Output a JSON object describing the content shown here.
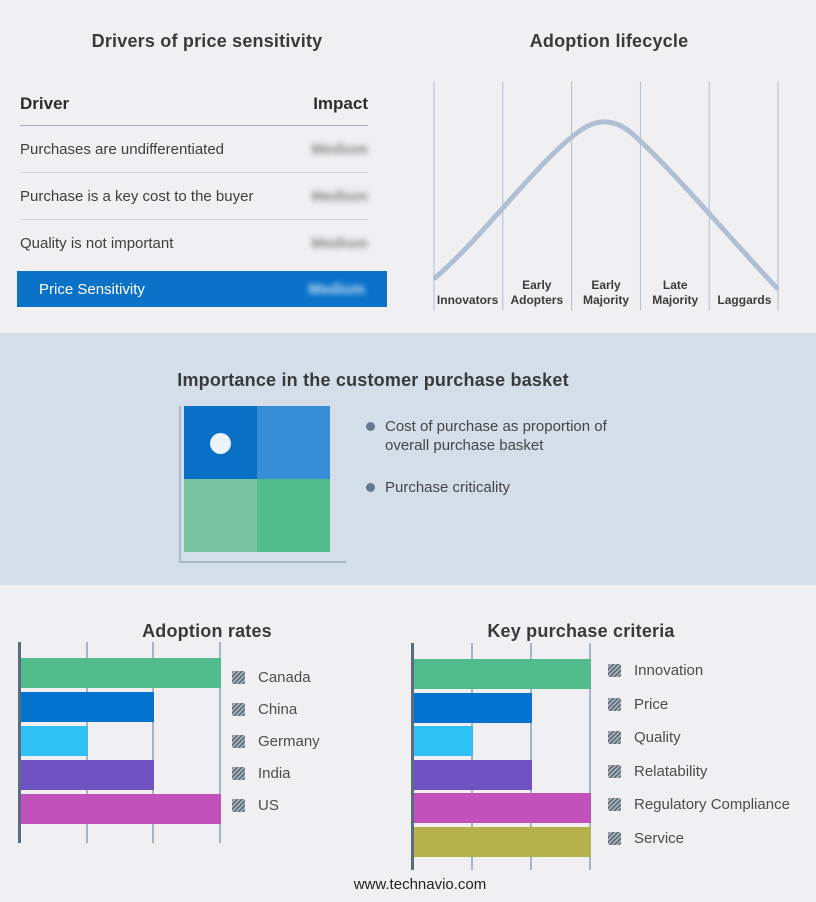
{
  "page": {
    "footer": "www.technavio.com",
    "background": "#f0f0f2",
    "band_background": "#d4dee8"
  },
  "price_sensitivity": {
    "title": "Drivers of price sensitivity",
    "columns": [
      "Driver",
      "Impact"
    ],
    "rows": [
      {
        "driver": "Purchases are undifferentiated",
        "impact": "Medium",
        "redacted": true
      },
      {
        "driver": "Purchase is a key cost to the buyer",
        "impact": "Medium",
        "redacted": true
      },
      {
        "driver": "Quality is not important",
        "impact": "Medium",
        "redacted": true
      }
    ],
    "summary": {
      "label": "Price Sensitivity",
      "impact": "Medium",
      "redacted": true,
      "color": "#0b72c8"
    }
  },
  "purchase_basket": {
    "title": "Importance in the customer purchase basket",
    "bullets": [
      "Cost of purchase as proportion of overall purchase basket",
      "Purchase criticality"
    ],
    "quadrant": {
      "colors": {
        "top_left": "#0a70c6",
        "top_right": "#388ed6",
        "bottom_left": "#79c3a2",
        "bottom_right": "#52bb8b"
      },
      "marker_quadrant": "top_left",
      "marker_color": "#ecf3fa"
    }
  },
  "chart_data": [
    {
      "id": "adoption_rates",
      "type": "bar",
      "orientation": "horizontal",
      "title": "Adoption rates",
      "categories": [
        "Canada",
        "China",
        "Germany",
        "India",
        "US"
      ],
      "values": [
        3,
        2,
        1,
        2,
        3
      ],
      "xlim": [
        0,
        3
      ],
      "grid": true,
      "legend_position": "right",
      "colors": [
        "#52bb8b",
        "#0473ce",
        "#2fc0f4",
        "#6e52c2",
        "#c152bc"
      ],
      "axis_color": "#5b6b80",
      "grid_color": "#a8b4c6"
    },
    {
      "id": "key_purchase_criteria",
      "type": "bar",
      "orientation": "horizontal",
      "title": "Key purchase criteria",
      "categories": [
        "Innovation",
        "Price",
        "Quality",
        "Relatability",
        "Regulatory Compliance",
        "Service"
      ],
      "values": [
        3,
        2,
        1,
        2,
        3,
        3
      ],
      "xlim": [
        0,
        3
      ],
      "grid": true,
      "legend_position": "right",
      "colors": [
        "#52bb8b",
        "#0473ce",
        "#2fc0f4",
        "#6e52c2",
        "#c152bc",
        "#b5b14c"
      ],
      "axis_color": "#5b6b80",
      "grid_color": "#a8b4c6"
    },
    {
      "id": "adoption_lifecycle",
      "type": "line",
      "title": "Adoption lifecycle",
      "shape": "bell",
      "stages": [
        "Innovators",
        "Early Adopters",
        "Early Majority",
        "Late Majority",
        "Laggards"
      ],
      "peak_stage": "Early Majority",
      "curve_color": "#b0bfd3",
      "grid_color": "#aebdd2"
    }
  ]
}
